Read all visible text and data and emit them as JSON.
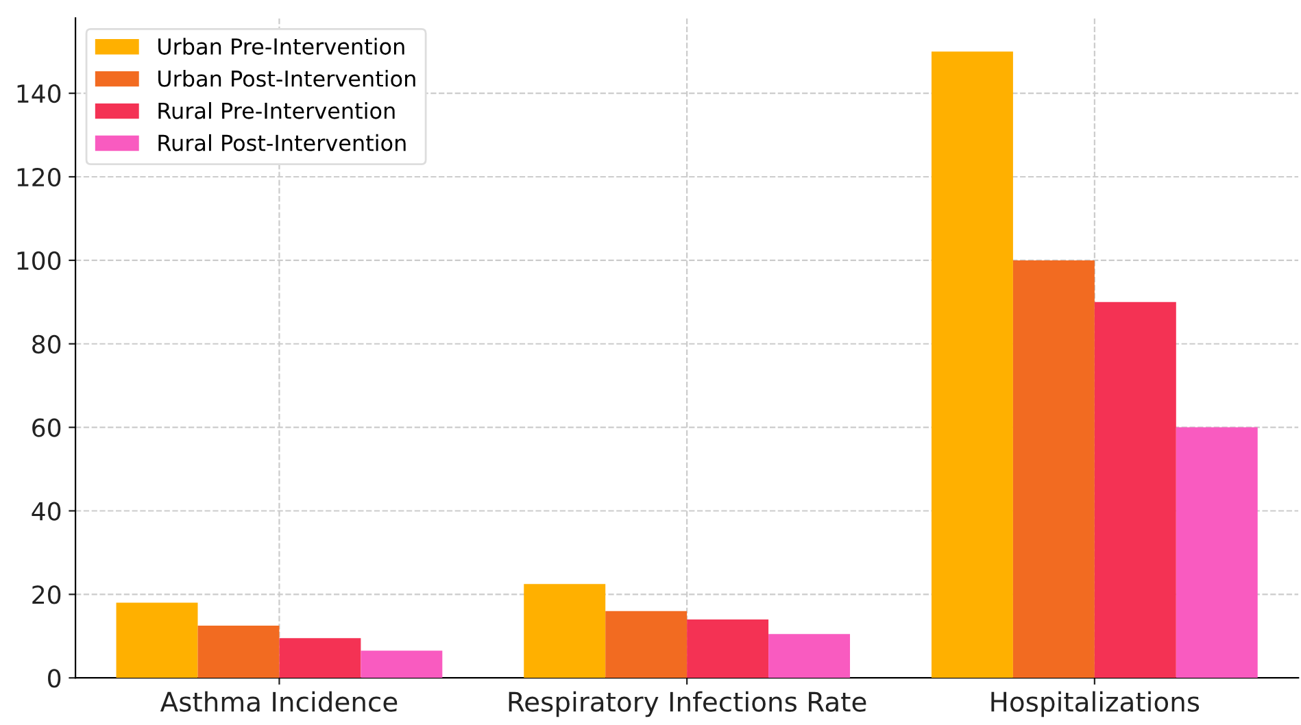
{
  "chart_data": {
    "type": "bar",
    "categories": [
      "Asthma Incidence",
      "Respiratory Infections Rate",
      "Hospitalizations"
    ],
    "series": [
      {
        "name": "Urban Pre-Intervention",
        "color": "#ffb000",
        "values": [
          18,
          22.5,
          150
        ]
      },
      {
        "name": "Urban Post-Intervention",
        "color": "#f26b21",
        "values": [
          12.5,
          16,
          100
        ]
      },
      {
        "name": "Rural Pre-Intervention",
        "color": "#f43254",
        "values": [
          9.5,
          14,
          90
        ]
      },
      {
        "name": "Rural Post-Intervention",
        "color": "#f95bc0",
        "values": [
          6.5,
          10.5,
          60
        ]
      }
    ],
    "ylim": [
      0,
      158
    ],
    "yticks": [
      0,
      20,
      40,
      60,
      80,
      100,
      120,
      140
    ],
    "grid": true,
    "legend": "top left"
  }
}
